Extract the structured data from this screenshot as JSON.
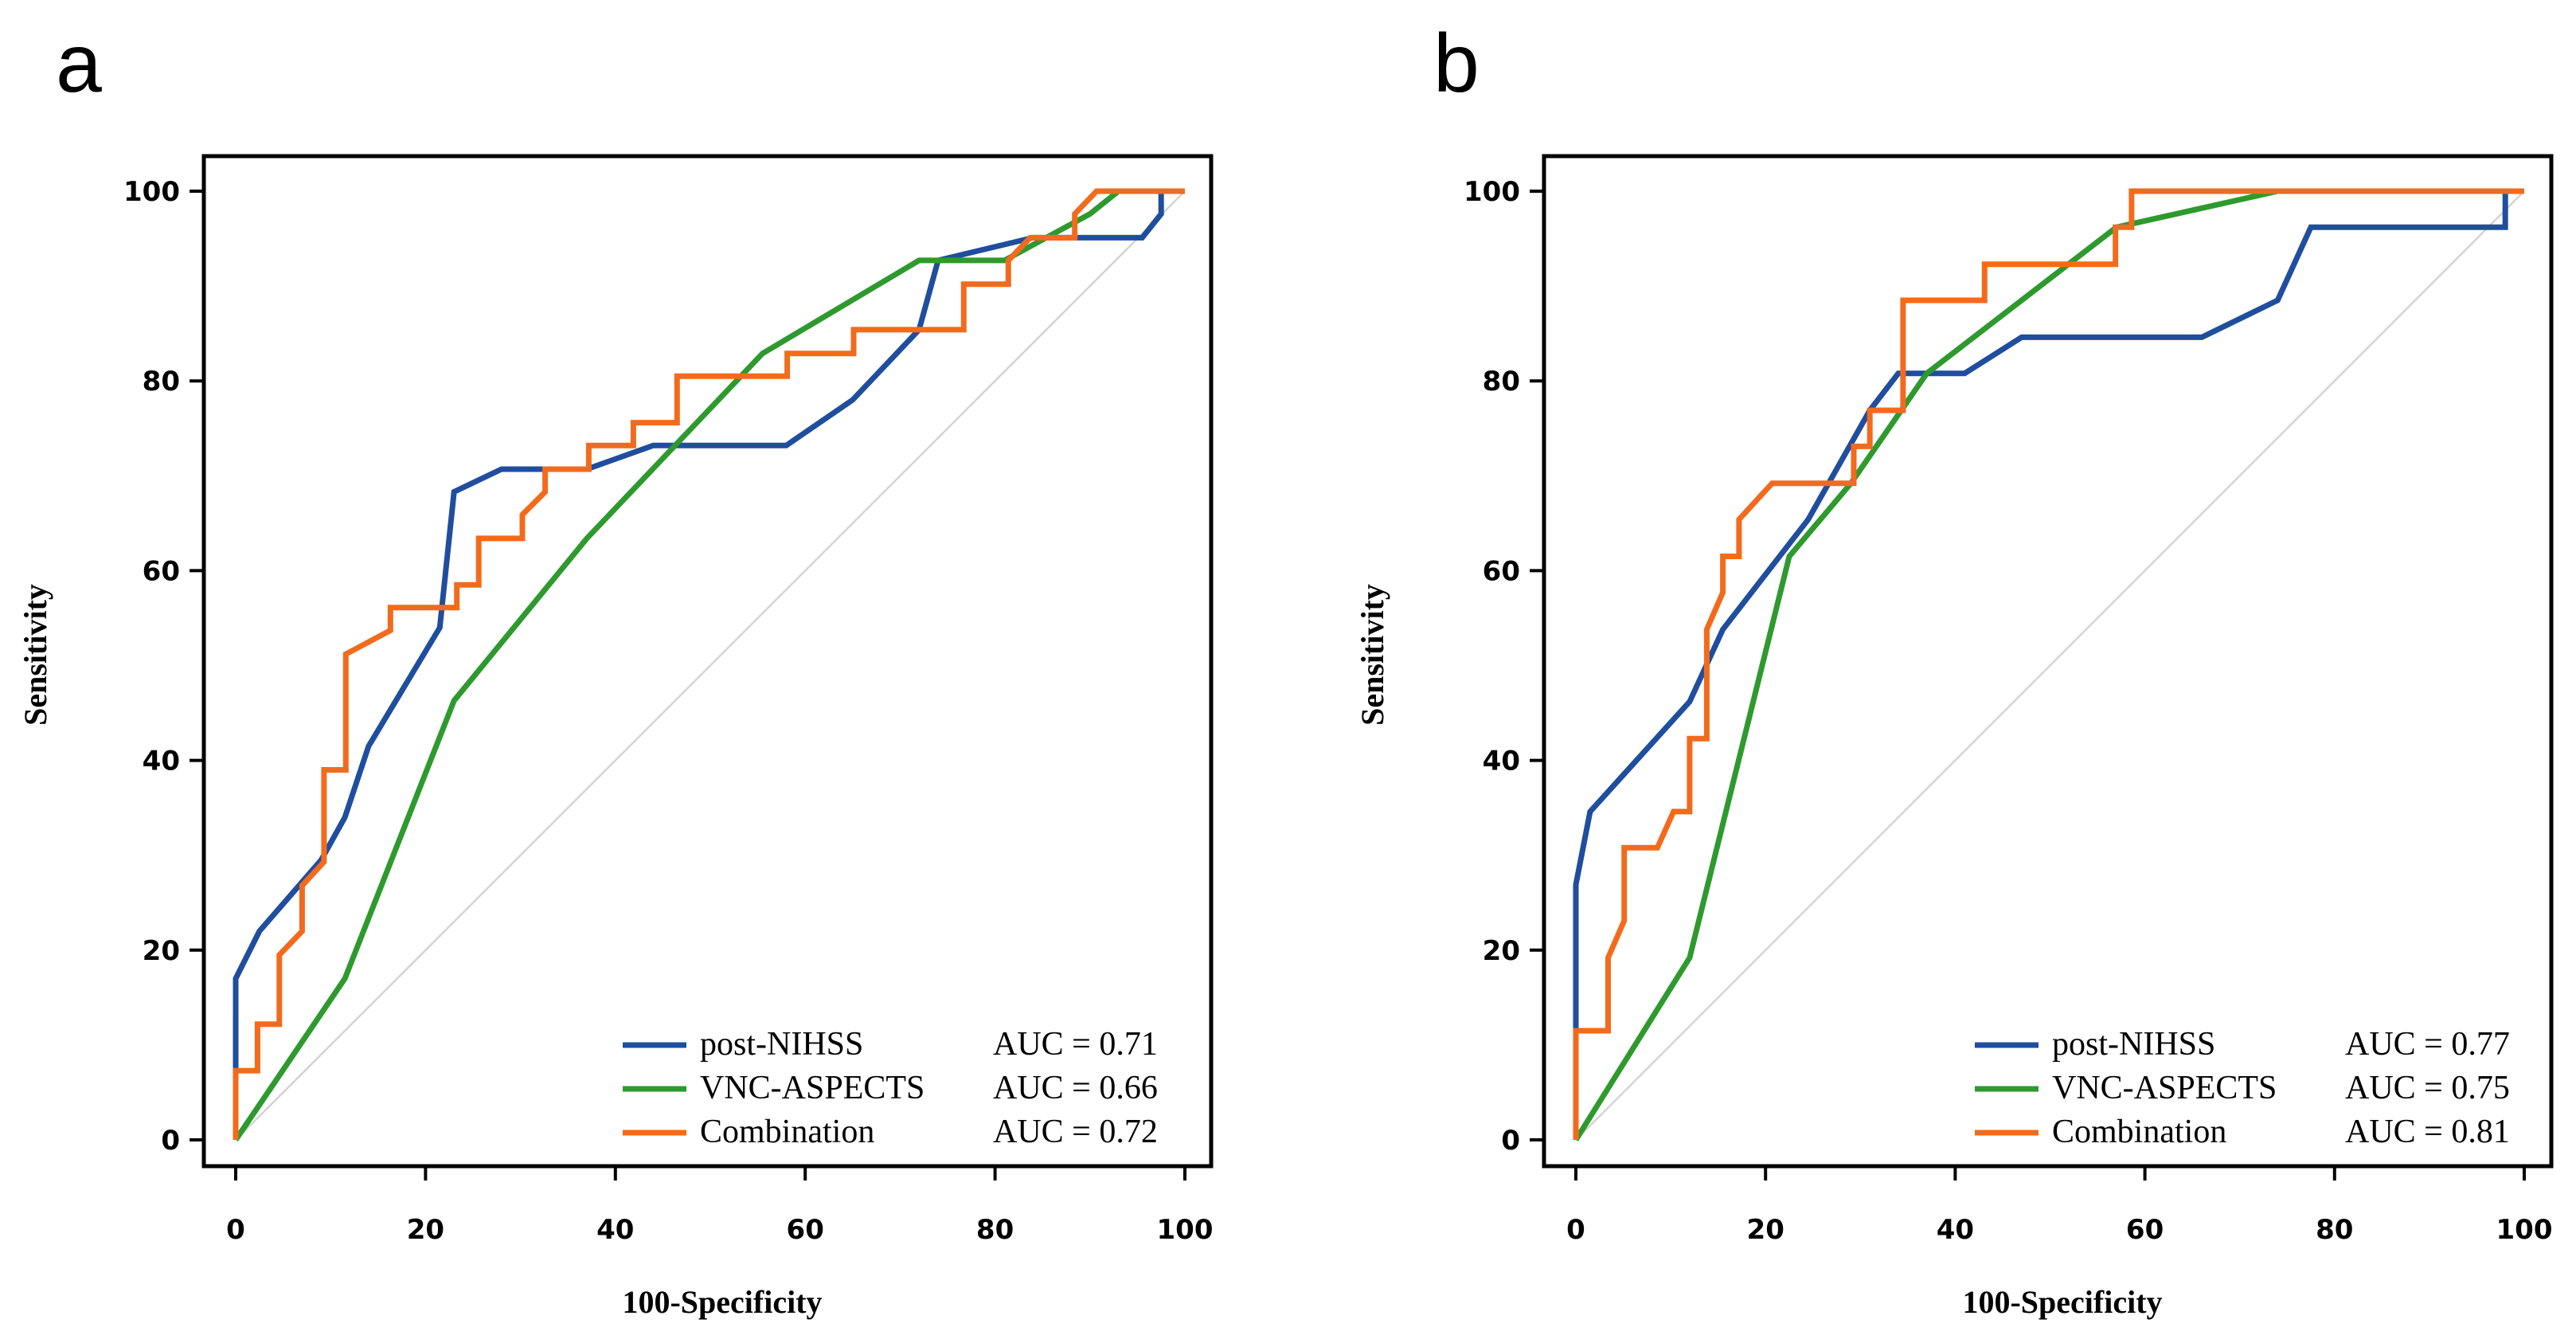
{
  "colors": {
    "post_nihss": "#1f4e9e",
    "vnc_aspects": "#2e9a2e",
    "combination": "#f26b1d",
    "reference": "#d4d4d4"
  },
  "chart_data": [
    {
      "type": "line",
      "panel_label": "a",
      "xlabel": "100-Specificity",
      "ylabel": "Sensitivity",
      "xlim": [
        0,
        100
      ],
      "ylim": [
        0,
        100
      ],
      "xticks": [
        0,
        20,
        40,
        60,
        80,
        100
      ],
      "yticks": [
        0,
        20,
        40,
        60,
        80,
        100
      ],
      "reference_line": [
        [
          0,
          0
        ],
        [
          100,
          100
        ]
      ],
      "legend_position": "bottom-right",
      "series": [
        {
          "name": "post-NIHSS",
          "auc_label": "AUC = 0.71",
          "color": "#1f4e9e",
          "points": [
            [
              0,
              0
            ],
            [
              0,
              17
            ],
            [
              2.5,
              22
            ],
            [
              9,
              29.5
            ],
            [
              11.5,
              34
            ],
            [
              14,
              41.5
            ],
            [
              21.5,
              54
            ],
            [
              23,
              68.3
            ],
            [
              28,
              70.7
            ],
            [
              37,
              70.7
            ],
            [
              44,
              73.2
            ],
            [
              58,
              73.2
            ],
            [
              65,
              78
            ],
            [
              72,
              85.4
            ],
            [
              74,
              92.7
            ],
            [
              84,
              95.1
            ],
            [
              95.5,
              95.1
            ],
            [
              97.5,
              97.6
            ],
            [
              97.5,
              100
            ],
            [
              100,
              100
            ]
          ]
        },
        {
          "name": "VNC-ASPECTS",
          "auc_label": "AUC = 0.66",
          "color": "#2e9a2e",
          "points": [
            [
              0,
              0
            ],
            [
              11.5,
              17
            ],
            [
              23,
              46.3
            ],
            [
              37,
              63.4
            ],
            [
              55.5,
              82.9
            ],
            [
              72,
              92.7
            ],
            [
              81,
              92.7
            ],
            [
              90,
              97.6
            ],
            [
              93,
              100
            ],
            [
              100,
              100
            ]
          ]
        },
        {
          "name": "Combination",
          "auc_label": "AUC = 0.72",
          "color": "#f26b1d",
          "points": [
            [
              0,
              0
            ],
            [
              0,
              7.3
            ],
            [
              2.3,
              7.3
            ],
            [
              2.3,
              12.2
            ],
            [
              4.6,
              12.2
            ],
            [
              4.6,
              19.5
            ],
            [
              7,
              22
            ],
            [
              7,
              26.8
            ],
            [
              9.3,
              29.3
            ],
            [
              9.3,
              39
            ],
            [
              11.6,
              39
            ],
            [
              11.6,
              51.2
            ],
            [
              16.3,
              53.7
            ],
            [
              16.3,
              56.1
            ],
            [
              23.3,
              56.1
            ],
            [
              23.3,
              58.5
            ],
            [
              25.6,
              58.5
            ],
            [
              25.6,
              63.4
            ],
            [
              30.2,
              63.4
            ],
            [
              30.2,
              65.9
            ],
            [
              32.6,
              68.3
            ],
            [
              32.6,
              70.7
            ],
            [
              37.2,
              70.7
            ],
            [
              37.2,
              73.2
            ],
            [
              41.9,
              73.2
            ],
            [
              41.9,
              75.6
            ],
            [
              46.5,
              75.6
            ],
            [
              46.5,
              80.5
            ],
            [
              58.1,
              80.5
            ],
            [
              58.1,
              82.9
            ],
            [
              65.1,
              82.9
            ],
            [
              65.1,
              85.4
            ],
            [
              76.7,
              85.4
            ],
            [
              76.7,
              90.2
            ],
            [
              81.4,
              90.2
            ],
            [
              81.4,
              92.7
            ],
            [
              83.7,
              95.1
            ],
            [
              88.4,
              95.1
            ],
            [
              88.4,
              97.6
            ],
            [
              90.7,
              100
            ],
            [
              100,
              100
            ]
          ]
        }
      ]
    },
    {
      "type": "line",
      "panel_label": "b",
      "xlabel": "100-Specificity",
      "ylabel": "Sensitivity",
      "xlim": [
        0,
        100
      ],
      "ylim": [
        0,
        100
      ],
      "xticks": [
        0,
        20,
        40,
        60,
        80,
        100
      ],
      "yticks": [
        0,
        20,
        40,
        60,
        80,
        100
      ],
      "reference_line": [
        [
          0,
          0
        ],
        [
          100,
          100
        ]
      ],
      "legend_position": "bottom-right",
      "series": [
        {
          "name": "post-NIHSS",
          "auc_label": "AUC = 0.77",
          "color": "#1f4e9e",
          "points": [
            [
              0,
              0
            ],
            [
              0,
              26.9
            ],
            [
              1.5,
              34.6
            ],
            [
              12,
              46.2
            ],
            [
              15.5,
              53.8
            ],
            [
              24.5,
              65.4
            ],
            [
              31,
              76.9
            ],
            [
              34,
              80.8
            ],
            [
              41,
              80.8
            ],
            [
              47,
              84.6
            ],
            [
              66,
              84.6
            ],
            [
              74,
              88.5
            ],
            [
              77.5,
              96.2
            ],
            [
              98,
              96.2
            ],
            [
              98,
              100
            ],
            [
              100,
              100
            ]
          ]
        },
        {
          "name": "VNC-ASPECTS",
          "auc_label": "AUC = 0.75",
          "color": "#2e9a2e",
          "points": [
            [
              0,
              0
            ],
            [
              12,
              19.2
            ],
            [
              22.5,
              61.5
            ],
            [
              29,
              69.2
            ],
            [
              37,
              80.8
            ],
            [
              57,
              96.2
            ],
            [
              74,
              100
            ],
            [
              100,
              100
            ]
          ]
        },
        {
          "name": "Combination",
          "auc_label": "AUC = 0.81",
          "color": "#f26b1d",
          "points": [
            [
              0,
              0
            ],
            [
              0,
              11.5
            ],
            [
              3.4,
              11.5
            ],
            [
              3.4,
              19.2
            ],
            [
              5.1,
              23.1
            ],
            [
              5.1,
              30.8
            ],
            [
              8.6,
              30.8
            ],
            [
              10.3,
              34.6
            ],
            [
              12,
              34.6
            ],
            [
              12,
              42.3
            ],
            [
              13.8,
              42.3
            ],
            [
              13.8,
              53.8
            ],
            [
              15.5,
              57.7
            ],
            [
              15.5,
              61.5
            ],
            [
              17.2,
              61.5
            ],
            [
              17.2,
              65.4
            ],
            [
              20.7,
              69.2
            ],
            [
              29.3,
              69.2
            ],
            [
              29.3,
              73.1
            ],
            [
              31,
              73.1
            ],
            [
              31,
              76.9
            ],
            [
              34.5,
              76.9
            ],
            [
              34.5,
              88.5
            ],
            [
              43.1,
              88.5
            ],
            [
              43.1,
              92.3
            ],
            [
              56.9,
              92.3
            ],
            [
              56.9,
              96.2
            ],
            [
              58.6,
              96.2
            ],
            [
              58.6,
              100
            ],
            [
              100,
              100
            ]
          ]
        }
      ]
    }
  ]
}
